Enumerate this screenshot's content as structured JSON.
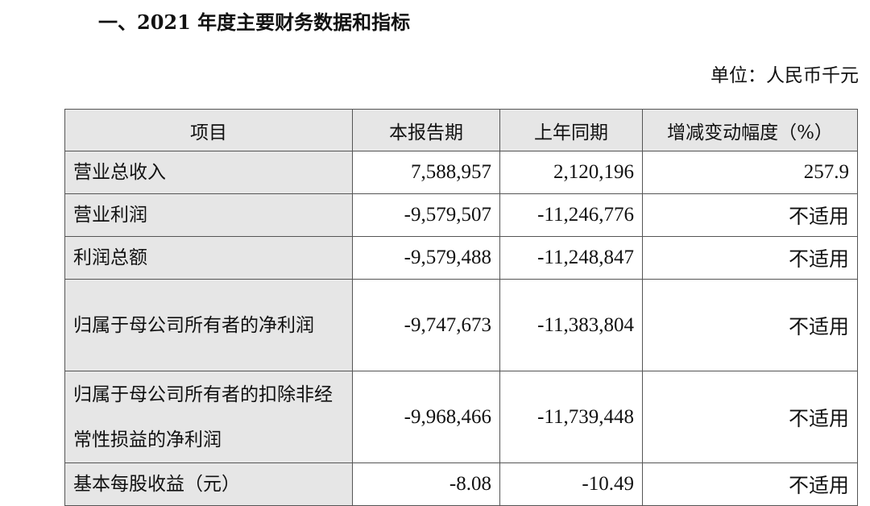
{
  "title": "一、2021 年度主要财务数据和指标",
  "unit": "单位：人民币千元",
  "table": {
    "headers": [
      "项目",
      "本报告期",
      "上年同期",
      "增减变动幅度（%）"
    ],
    "rows": [
      {
        "item": "营业总收入",
        "current": "7,588,957",
        "prior": "2,120,196",
        "change": "257.9"
      },
      {
        "item": "营业利润",
        "current": "-9,579,507",
        "prior": "-11,246,776",
        "change": "不适用"
      },
      {
        "item": "利润总额",
        "current": "-9,579,488",
        "prior": "-11,248,847",
        "change": "不适用"
      },
      {
        "item": "归属于母公司所有者的净利润",
        "current": "-9,747,673",
        "prior": "-11,383,804",
        "change": "不适用"
      },
      {
        "item": "归属于母公司所有者的扣除非经常性损益的净利润",
        "current": "-9,968,466",
        "prior": "-11,739,448",
        "change": "不适用"
      },
      {
        "item": "基本每股收益（元）",
        "current": "-8.08",
        "prior": "-10.49",
        "change": "不适用"
      }
    ]
  }
}
